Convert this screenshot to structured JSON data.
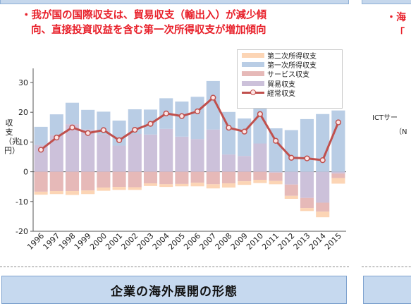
{
  "headline": {
    "line1": "・我が国の国際収支は、貿易収支（輸出入）が減少傾",
    "line2": "向、直接投資収益を含む第一次所得収支が増加傾向"
  },
  "right_panel": {
    "frag1": "・海",
    "frag2": "「",
    "frag3": "ICTサー",
    "frag4": "（N"
  },
  "section_heading": "企業の海外展開の形態",
  "colors": {
    "secondary_income": "#fcd5b5",
    "primary_income": "#b9cde5",
    "services": "#e6b9b8",
    "trade": "#ccc1da",
    "current_account": "#c0504d",
    "headline": "#e8202a"
  },
  "chart_data": {
    "type": "bar",
    "stacked": true,
    "title": "",
    "xlabel": "",
    "ylabel": "収支（兆円）",
    "ylim": [
      -20,
      30
    ],
    "yticks": [
      30,
      20,
      10,
      0,
      -10,
      -20
    ],
    "categories": [
      "1996",
      "1997",
      "1998",
      "1999",
      "2000",
      "2001",
      "2002",
      "2003",
      "2004",
      "2005",
      "2006",
      "2007",
      "2008",
      "2009",
      "2010",
      "2011",
      "2012",
      "2013",
      "2014",
      "2015"
    ],
    "series": [
      {
        "name": "第二次所得収支",
        "kind": "bar",
        "values": [
          -1.0,
          -1.0,
          -1.3,
          -1.2,
          -1.1,
          -1.0,
          -0.9,
          -0.9,
          -0.9,
          -0.8,
          -1.2,
          -1.4,
          -1.4,
          -1.2,
          -1.1,
          -1.1,
          -1.0,
          -1.0,
          -1.9,
          -1.9
        ]
      },
      {
        "name": "第一次所得収支",
        "kind": "bar",
        "values": [
          6.1,
          7.0,
          7.2,
          6.6,
          7.6,
          8.4,
          8.3,
          8.4,
          10.3,
          11.8,
          14.2,
          16.3,
          14.3,
          12.6,
          13.6,
          14.6,
          14.0,
          17.7,
          19.4,
          20.6
        ]
      },
      {
        "name": "サービス収支",
        "kind": "bar",
        "values": [
          -6.7,
          -6.5,
          -6.5,
          -6.3,
          -5.3,
          -5.1,
          -5.2,
          -3.9,
          -4.2,
          -4.1,
          -3.7,
          -4.2,
          -3.9,
          -3.2,
          -2.7,
          -2.8,
          -3.8,
          -3.4,
          -3.0,
          -1.5
        ]
      },
      {
        "name": "貿易収支",
        "kind": "bar",
        "values": [
          9.0,
          12.3,
          16.0,
          14.2,
          12.6,
          8.8,
          12.7,
          12.5,
          14.4,
          11.8,
          11.0,
          14.2,
          5.8,
          5.3,
          9.5,
          -0.3,
          -4.3,
          -8.8,
          -10.4,
          -0.6
        ]
      },
      {
        "name": "経常収支",
        "kind": "line",
        "values": [
          7.4,
          11.5,
          14.9,
          13.0,
          14.0,
          10.6,
          14.1,
          16.1,
          19.6,
          18.7,
          20.3,
          24.9,
          14.8,
          13.5,
          19.4,
          10.4,
          4.7,
          4.5,
          3.9,
          16.6
        ]
      }
    ],
    "legend_position": "top-right",
    "grid": false
  }
}
